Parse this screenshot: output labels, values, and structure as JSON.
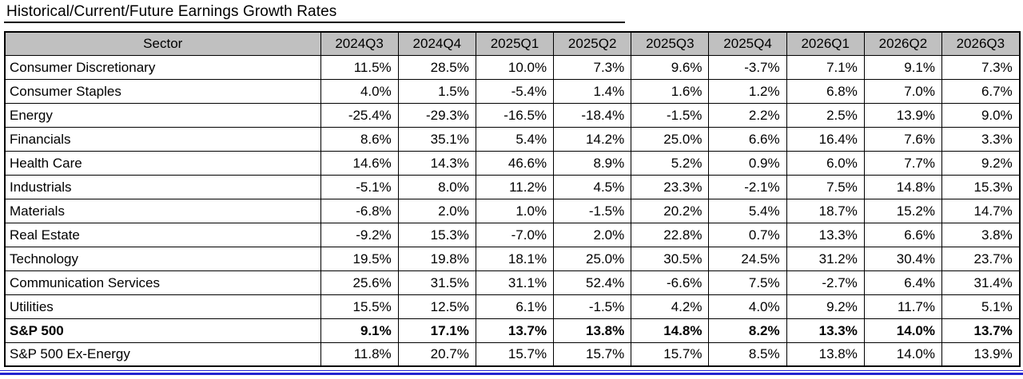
{
  "title": "Historical/Current/Future Earnings Growth Rates",
  "colors": {
    "header_bg": "#c0c0c0",
    "rule_blue": "#2323cf",
    "border_black": "#000000"
  },
  "chart_data": {
    "type": "table",
    "title": "Historical/Current/Future Earnings Growth Rates",
    "columns": [
      "Sector",
      "2024Q3",
      "2024Q4",
      "2025Q1",
      "2025Q2",
      "2025Q3",
      "2025Q4",
      "2026Q1",
      "2026Q2",
      "2026Q3"
    ],
    "rows": [
      {
        "sector": "Consumer Discretionary",
        "bold": false,
        "values": [
          "11.5%",
          "28.5%",
          "10.0%",
          "7.3%",
          "9.6%",
          "-3.7%",
          "7.1%",
          "9.1%",
          "7.3%"
        ]
      },
      {
        "sector": "Consumer Staples",
        "bold": false,
        "values": [
          "4.0%",
          "1.5%",
          "-5.4%",
          "1.4%",
          "1.6%",
          "1.2%",
          "6.8%",
          "7.0%",
          "6.7%"
        ]
      },
      {
        "sector": "Energy",
        "bold": false,
        "values": [
          "-25.4%",
          "-29.3%",
          "-16.5%",
          "-18.4%",
          "-1.5%",
          "2.2%",
          "2.5%",
          "13.9%",
          "9.0%"
        ]
      },
      {
        "sector": "Financials",
        "bold": false,
        "values": [
          "8.6%",
          "35.1%",
          "5.4%",
          "14.2%",
          "25.0%",
          "6.6%",
          "16.4%",
          "7.6%",
          "3.3%"
        ]
      },
      {
        "sector": "Health Care",
        "bold": false,
        "values": [
          "14.6%",
          "14.3%",
          "46.6%",
          "8.9%",
          "5.2%",
          "0.9%",
          "6.0%",
          "7.7%",
          "9.2%"
        ]
      },
      {
        "sector": "Industrials",
        "bold": false,
        "values": [
          "-5.1%",
          "8.0%",
          "11.2%",
          "4.5%",
          "23.3%",
          "-2.1%",
          "7.5%",
          "14.8%",
          "15.3%"
        ]
      },
      {
        "sector": "Materials",
        "bold": false,
        "values": [
          "-6.8%",
          "2.0%",
          "1.0%",
          "-1.5%",
          "20.2%",
          "5.4%",
          "18.7%",
          "15.2%",
          "14.7%"
        ]
      },
      {
        "sector": "Real Estate",
        "bold": false,
        "values": [
          "-9.2%",
          "15.3%",
          "-7.0%",
          "2.0%",
          "22.8%",
          "0.7%",
          "13.3%",
          "6.6%",
          "3.8%"
        ]
      },
      {
        "sector": "Technology",
        "bold": false,
        "values": [
          "19.5%",
          "19.8%",
          "18.1%",
          "25.0%",
          "30.5%",
          "24.5%",
          "31.2%",
          "30.4%",
          "23.7%"
        ]
      },
      {
        "sector": "Communication Services",
        "bold": false,
        "values": [
          "25.6%",
          "31.5%",
          "31.1%",
          "52.4%",
          "-6.6%",
          "7.5%",
          "-2.7%",
          "6.4%",
          "31.4%"
        ]
      },
      {
        "sector": "Utilities",
        "bold": false,
        "values": [
          "15.5%",
          "12.5%",
          "6.1%",
          "-1.5%",
          "4.2%",
          "4.0%",
          "9.2%",
          "11.7%",
          "5.1%"
        ]
      },
      {
        "sector": "S&P 500",
        "bold": true,
        "values": [
          "9.1%",
          "17.1%",
          "13.7%",
          "13.8%",
          "14.8%",
          "8.2%",
          "13.3%",
          "14.0%",
          "13.7%"
        ]
      },
      {
        "sector": "S&P 500 Ex-Energy",
        "bold": false,
        "values": [
          "11.8%",
          "20.7%",
          "15.7%",
          "15.7%",
          "15.7%",
          "8.5%",
          "13.8%",
          "14.0%",
          "13.9%"
        ]
      }
    ]
  }
}
